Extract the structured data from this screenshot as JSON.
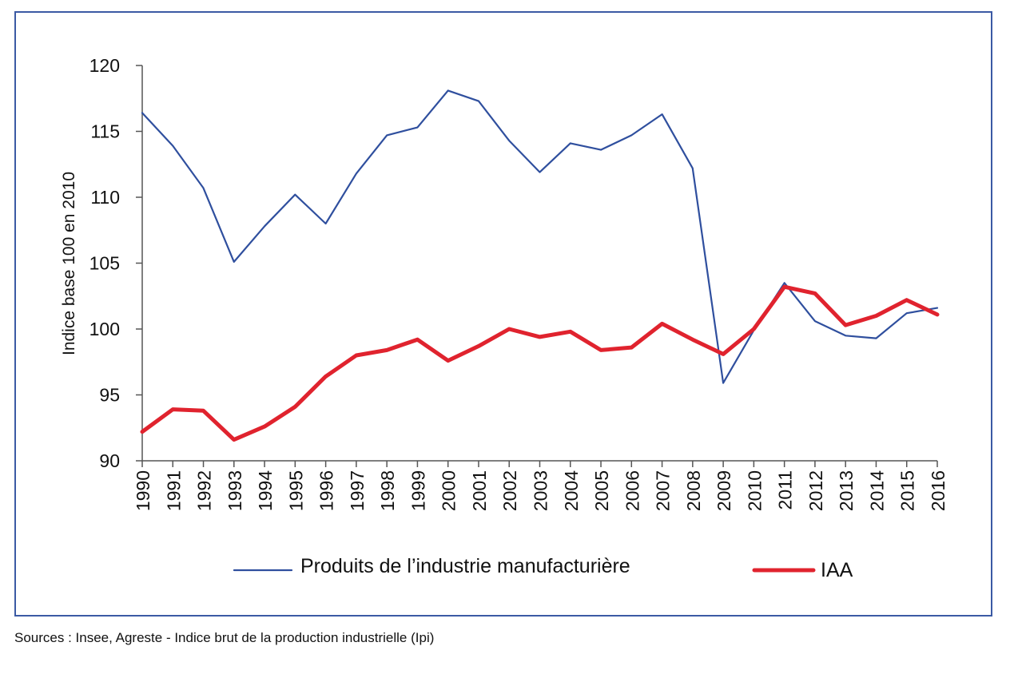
{
  "chart_data": {
    "type": "line",
    "ylabel": "Indice base 100 en 2010",
    "ylim": [
      90,
      120
    ],
    "yticks": [
      90,
      95,
      100,
      105,
      110,
      115,
      120
    ],
    "x": [
      "1990",
      "1991",
      "1992",
      "1993",
      "1994",
      "1995",
      "1996",
      "1997",
      "1998",
      "1999",
      "2000",
      "2001",
      "2002",
      "2003",
      "2004",
      "2005",
      "2006",
      "2007",
      "2008",
      "2009",
      "2010",
      "2011",
      "2012",
      "2013",
      "2014",
      "2015",
      "2016"
    ],
    "grid": false,
    "legend_position": "bottom",
    "series": [
      {
        "name": "Produits de l’industrie manufacturière",
        "color": "#2f4f9e",
        "values": [
          116.4,
          113.9,
          110.7,
          105.1,
          107.8,
          110.2,
          108.0,
          111.8,
          114.7,
          115.3,
          118.1,
          117.3,
          114.3,
          111.9,
          114.1,
          113.6,
          114.7,
          116.3,
          112.2,
          95.9,
          99.9,
          103.5,
          100.6,
          99.5,
          99.3,
          101.2,
          101.6
        ]
      },
      {
        "name": "IAA",
        "color": "#e0232e",
        "values": [
          92.2,
          93.9,
          93.8,
          91.6,
          92.6,
          94.1,
          96.4,
          98.0,
          98.4,
          99.2,
          97.6,
          98.7,
          100.0,
          99.4,
          99.8,
          98.4,
          98.6,
          100.4,
          99.2,
          98.1,
          100.0,
          103.2,
          102.7,
          100.3,
          101.0,
          102.2,
          101.1
        ]
      }
    ]
  },
  "source": "Sources : Insee, Agreste - Indice brut de la production industrielle (Ipi)"
}
